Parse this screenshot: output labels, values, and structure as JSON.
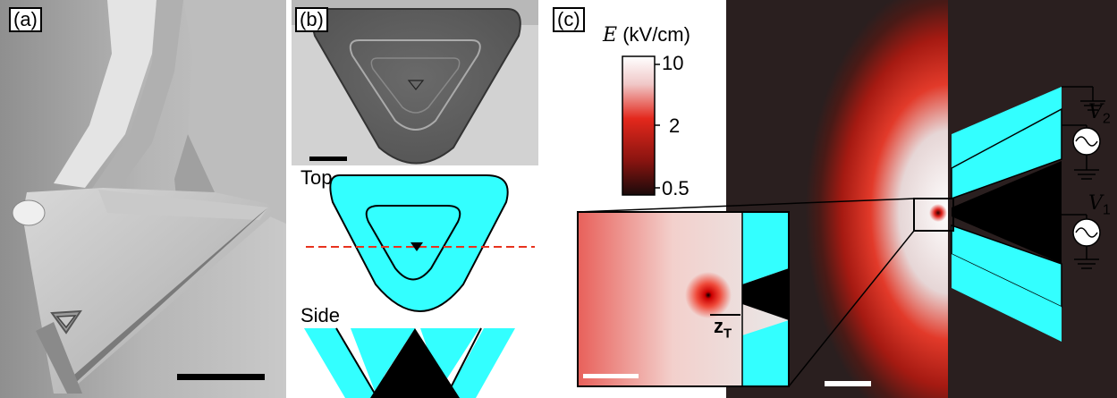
{
  "panels": {
    "a": {
      "tag": "(a)"
    },
    "b": {
      "tag": "(b)",
      "top_label": "Top",
      "side_label": "Side"
    },
    "c": {
      "tag": "(c)"
    }
  },
  "colorbar": {
    "symbol": "E",
    "unit": "(kV/cm)",
    "ticks": [
      "10",
      "2",
      "0.5"
    ]
  },
  "annotations": {
    "v2": "V",
    "v2_sub": "2",
    "v1": "V",
    "v1_sub": "1",
    "zt": "z",
    "zt_sub": "T"
  },
  "colors": {
    "cyan": "#33ffff",
    "field_dark": "#2a1f1f",
    "field_red": "#e0201a",
    "dashed_line": "#e8321e",
    "scalebar": "#000000"
  }
}
